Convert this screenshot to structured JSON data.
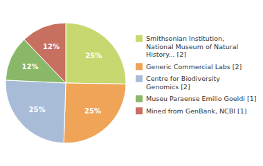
{
  "chart_data": {
    "type": "pie",
    "categories": [
      "Smithsonian Institution,\nNational Museum of Natural\nHistory... [2]",
      "Generic Commercial Labs [2]",
      "Centre for Biodiversity\nGenomics [2]",
      "Museu Paraense Emilio Goeldi [1]",
      "Mined from GenBank, NCBI [1]"
    ],
    "values": [
      25,
      25,
      25,
      12,
      12
    ],
    "value_labels": [
      "25%",
      "25%",
      "25%",
      "12%",
      "12%"
    ],
    "colors": [
      "#c8d870",
      "#f0a458",
      "#a8bcd8",
      "#88b868",
      "#c87060"
    ],
    "data_labels": true,
    "legend": "right"
  }
}
